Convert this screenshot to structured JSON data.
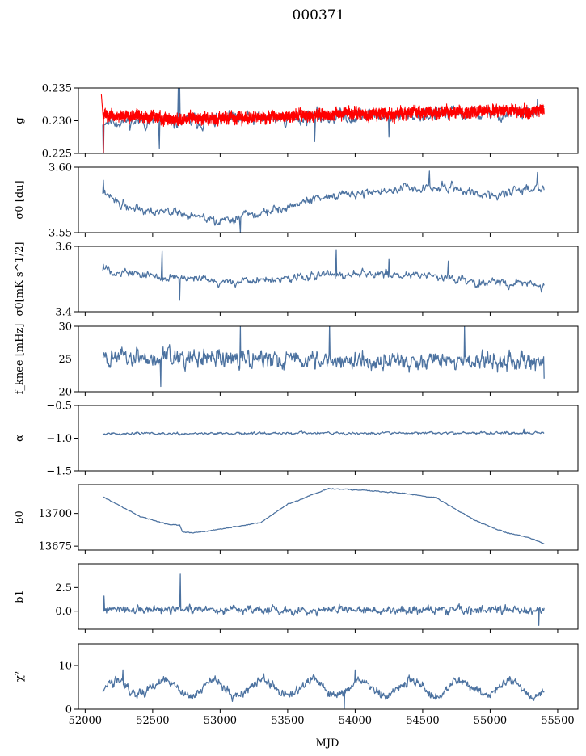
{
  "title": "000371",
  "xlabel": "MJD",
  "colors": {
    "series": "#4c72a0",
    "fit": "#ff0000",
    "axes": "#000000"
  },
  "chart_data": [
    {
      "type": "line",
      "ylabel": "g",
      "ylim": [
        0.225,
        0.235
      ],
      "xlim": [
        51950,
        55650
      ],
      "yticks": [
        "0.225",
        "0.230",
        "0.235"
      ],
      "ytick_values": [
        0.225,
        0.23,
        0.235
      ],
      "series": [
        {
          "name": "g",
          "color": "#4c72a0",
          "x_range": [
            52130,
            55400
          ],
          "n": 650,
          "base": [
            [
              52130,
              0.23
            ],
            [
              52700,
              0.2298
            ],
            [
              53300,
              0.2303
            ],
            [
              54000,
              0.2307
            ],
            [
              54700,
              0.231
            ],
            [
              55400,
              0.2312
            ]
          ],
          "noise": 0.0011,
          "seed": 11,
          "spikes": [
            [
              52135,
              0.2235
            ],
            [
              52690,
              0.2352
            ],
            [
              52700,
              0.2355
            ],
            [
              52550,
              0.2258
            ],
            [
              53700,
              0.2268
            ],
            [
              54250,
              0.2275
            ],
            [
              55350,
              0.2333
            ]
          ]
        },
        {
          "name": "fit",
          "color": "#ff0000",
          "x_range": [
            52130,
            55400
          ],
          "n": 1400,
          "base": [
            [
              52130,
              0.231
            ],
            [
              52700,
              0.2302
            ],
            [
              53300,
              0.2305
            ],
            [
              54000,
              0.2311
            ],
            [
              54700,
              0.2313
            ],
            [
              55400,
              0.2315
            ]
          ],
          "noise": 0.0006,
          "seed": 5,
          "band": true,
          "spikes": [
            [
              52110,
              0.2352
            ],
            [
              52120,
              0.234
            ],
            [
              52135,
              0.225
            ]
          ]
        }
      ]
    },
    {
      "type": "line",
      "ylabel": "σ0 [du]",
      "ylim": [
        3.55,
        3.6
      ],
      "xlim": [
        51950,
        55650
      ],
      "yticks": [
        "3.55",
        "3.60"
      ],
      "ytick_values": [
        3.55,
        3.6
      ],
      "series": [
        {
          "name": "sigma0_du",
          "color": "#4c72a0",
          "x_range": [
            52130,
            55400
          ],
          "n": 650,
          "base": [
            [
              52130,
              3.58
            ],
            [
              52300,
              3.57
            ],
            [
              52700,
              3.565
            ],
            [
              53000,
              3.558
            ],
            [
              53300,
              3.565
            ],
            [
              53800,
              3.578
            ],
            [
              54200,
              3.582
            ],
            [
              54700,
              3.585
            ],
            [
              55000,
              3.578
            ],
            [
              55400,
              3.586
            ]
          ],
          "noise": 0.0035,
          "seed": 22,
          "spikes": [
            [
              52135,
              3.59
            ],
            [
              53150,
              3.55
            ],
            [
              54550,
              3.597
            ],
            [
              55350,
              3.596
            ]
          ]
        }
      ]
    },
    {
      "type": "line",
      "ylabel": "σ0[mK s^1/2]",
      "ylim": [
        3.4,
        3.6
      ],
      "xlim": [
        51950,
        55650
      ],
      "yticks": [
        "3.4",
        "3.6"
      ],
      "ytick_values": [
        3.4,
        3.6
      ],
      "series": [
        {
          "name": "sigma0_mK",
          "color": "#4c72a0",
          "x_range": [
            52130,
            55400
          ],
          "n": 650,
          "base": [
            [
              52130,
              3.53
            ],
            [
              52500,
              3.51
            ],
            [
              53000,
              3.49
            ],
            [
              53500,
              3.5
            ],
            [
              54000,
              3.52
            ],
            [
              54500,
              3.51
            ],
            [
              55000,
              3.49
            ],
            [
              55400,
              3.48
            ]
          ],
          "noise": 0.013,
          "seed": 33,
          "spikes": [
            [
              52135,
              3.545
            ],
            [
              52570,
              3.585
            ],
            [
              52700,
              3.435
            ],
            [
              53860,
              3.59
            ],
            [
              54250,
              3.56
            ],
            [
              54690,
              3.555
            ]
          ]
        }
      ]
    },
    {
      "type": "line",
      "ylabel": "f_knee [mHz]",
      "ylim": [
        20,
        30
      ],
      "xlim": [
        51950,
        55650
      ],
      "yticks": [
        "20",
        "25",
        "30"
      ],
      "ytick_values": [
        20,
        25,
        30
      ],
      "series": [
        {
          "name": "fknee",
          "color": "#4c72a0",
          "x_range": [
            52130,
            55400
          ],
          "n": 900,
          "base": [
            [
              52130,
              25.2
            ],
            [
              53500,
              24.9
            ],
            [
              55400,
              24.7
            ]
          ],
          "noise": 1.35,
          "seed": 44,
          "spikes": [
            [
              52560,
              20.8
            ],
            [
              53150,
              30.0
            ],
            [
              53810,
              30.3
            ],
            [
              54810,
              30.0
            ],
            [
              55400,
              22.0
            ]
          ]
        }
      ]
    },
    {
      "type": "line",
      "ylabel": "α",
      "ylim": [
        -1.5,
        -0.5
      ],
      "xlim": [
        51950,
        55650
      ],
      "yticks": [
        "−1.5",
        "−1.0",
        "−0.5"
      ],
      "ytick_values": [
        -1.5,
        -1.0,
        -0.5
      ],
      "series": [
        {
          "name": "alpha",
          "color": "#4c72a0",
          "x_range": [
            52130,
            55400
          ],
          "n": 800,
          "base": [
            [
              52130,
              -0.93
            ],
            [
              55400,
              -0.92
            ]
          ],
          "noise": 0.018,
          "seed": 55,
          "spikes": [
            [
              55250,
              -0.86
            ]
          ]
        }
      ]
    },
    {
      "type": "line",
      "ylabel": "b0",
      "ylim": [
        13672,
        13722
      ],
      "xlim": [
        51950,
        55650
      ],
      "yticks": [
        "13675",
        "13700"
      ],
      "ytick_values": [
        13675,
        13700
      ],
      "series": [
        {
          "name": "b0",
          "color": "#4c72a0",
          "x_range": [
            52130,
            55400
          ],
          "n": 650,
          "base": [
            [
              52130,
              13713
            ],
            [
              52200,
              13709
            ],
            [
              52400,
              13698
            ],
            [
              52600,
              13692
            ],
            [
              52700,
              13691
            ],
            [
              52720,
              13686
            ],
            [
              52800,
              13685
            ],
            [
              53000,
              13688
            ],
            [
              53300,
              13693
            ],
            [
              53500,
              13707
            ],
            [
              53800,
              13719
            ],
            [
              54000,
              13718
            ],
            [
              54300,
              13716
            ],
            [
              54600,
              13712
            ],
            [
              54900,
              13694
            ],
            [
              55100,
              13686
            ],
            [
              55300,
              13681
            ],
            [
              55400,
              13677
            ]
          ],
          "noise": 0.35,
          "seed": 66,
          "spikes": []
        }
      ]
    },
    {
      "type": "line",
      "ylabel": "b1",
      "ylim": [
        -1.9,
        5.0
      ],
      "xlim": [
        51950,
        55650
      ],
      "yticks": [
        "0.0",
        "2.5"
      ],
      "ytick_values": [
        0.0,
        2.5
      ],
      "series": [
        {
          "name": "b1",
          "color": "#4c72a0",
          "x_range": [
            52130,
            55400
          ],
          "n": 900,
          "base": [
            [
              52130,
              0.1
            ],
            [
              55400,
              0.1
            ]
          ],
          "noise": 0.42,
          "seed": 77,
          "spikes": [
            [
              52705,
              3.9
            ],
            [
              55360,
              -1.5
            ],
            [
              52140,
              1.6
            ]
          ]
        }
      ]
    },
    {
      "type": "line",
      "ylabel": "χ²",
      "ylim": [
        0,
        15
      ],
      "xlim": [
        51950,
        55650
      ],
      "yticks": [
        "0",
        "10"
      ],
      "ytick_values": [
        0,
        10
      ],
      "series": [
        {
          "name": "chi2",
          "color": "#4c72a0",
          "x_range": [
            52130,
            55400
          ],
          "n": 900,
          "base": [
            [
              52130,
              4.8
            ],
            [
              55400,
              4.8
            ]
          ],
          "noise": 1.0,
          "seed": 88,
          "periodic": {
            "amp": 1.8,
            "period": 365
          },
          "spikes": [
            [
              52280,
              9.0
            ],
            [
              54000,
              9.0
            ],
            [
              53920,
              0.2
            ]
          ]
        }
      ]
    }
  ],
  "xticks": [
    "52000",
    "52500",
    "53000",
    "53500",
    "54000",
    "54500",
    "55000",
    "55500"
  ],
  "xtick_values": [
    52000,
    52500,
    53000,
    53500,
    54000,
    54500,
    55000,
    55500
  ]
}
